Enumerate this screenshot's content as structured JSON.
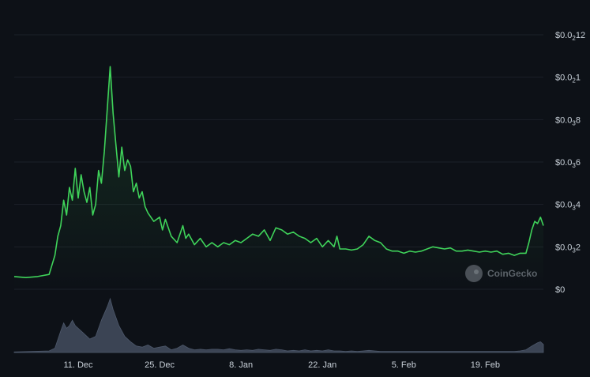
{
  "chart_data": {
    "type": "area",
    "title": "",
    "xlabel": "",
    "ylabel": "",
    "y_ticks": [
      {
        "label": "$0",
        "sub": "",
        "tail": "",
        "value": 0
      },
      {
        "label": "$0.0",
        "sub": "3",
        "tail": "2",
        "value": 2
      },
      {
        "label": "$0.0",
        "sub": "3",
        "tail": "4",
        "value": 4
      },
      {
        "label": "$0.0",
        "sub": "3",
        "tail": "6",
        "value": 6
      },
      {
        "label": "$0.0",
        "sub": "3",
        "tail": "8",
        "value": 8
      },
      {
        "label": "$0.0",
        "sub": "2",
        "tail": "1",
        "value": 10
      },
      {
        "label": "$0.0",
        "sub": "2",
        "tail": "12",
        "value": 12
      }
    ],
    "x_ticks": [
      {
        "label": "11. Dec",
        "day": 11
      },
      {
        "label": "25. Dec",
        "day": 25
      },
      {
        "label": "8. Jan",
        "day": 39
      },
      {
        "label": "22. Jan",
        "day": 53
      },
      {
        "label": "5. Feb",
        "day": 67
      },
      {
        "label": "19. Feb",
        "day": 81
      }
    ],
    "xlim": [
      0,
      91
    ],
    "ylim": [
      0,
      12
    ],
    "grid": true,
    "line_color": "#3fd35a",
    "volume_color": "#3b4454",
    "watermark": "CoinGecko",
    "price": [
      [
        0,
        0.6
      ],
      [
        2,
        0.55
      ],
      [
        4,
        0.6
      ],
      [
        6,
        0.7
      ],
      [
        7,
        1.6
      ],
      [
        7.5,
        2.5
      ],
      [
        8,
        3.0
      ],
      [
        8.5,
        4.2
      ],
      [
        9,
        3.5
      ],
      [
        9.5,
        4.8
      ],
      [
        10,
        4.2
      ],
      [
        10.5,
        5.7
      ],
      [
        11,
        4.3
      ],
      [
        11.5,
        5.4
      ],
      [
        12,
        4.6
      ],
      [
        12.5,
        4.1
      ],
      [
        13,
        4.8
      ],
      [
        13.5,
        3.5
      ],
      [
        14,
        4.0
      ],
      [
        14.5,
        5.6
      ],
      [
        15,
        5.0
      ],
      [
        15.5,
        6.5
      ],
      [
        16,
        8.5
      ],
      [
        16.5,
        10.5
      ],
      [
        17,
        8.3
      ],
      [
        17.5,
        6.8
      ],
      [
        18,
        5.3
      ],
      [
        18.5,
        6.7
      ],
      [
        19,
        5.6
      ],
      [
        19.5,
        6.1
      ],
      [
        20,
        5.8
      ],
      [
        20.5,
        4.6
      ],
      [
        21,
        5.0
      ],
      [
        21.5,
        4.3
      ],
      [
        22,
        4.6
      ],
      [
        22.5,
        3.9
      ],
      [
        23,
        3.6
      ],
      [
        24,
        3.2
      ],
      [
        25,
        3.4
      ],
      [
        25.5,
        2.8
      ],
      [
        26,
        3.3
      ],
      [
        27,
        2.5
      ],
      [
        28,
        2.2
      ],
      [
        29,
        3.0
      ],
      [
        29.5,
        2.4
      ],
      [
        30,
        2.6
      ],
      [
        31,
        2.1
      ],
      [
        32,
        2.4
      ],
      [
        33,
        2.0
      ],
      [
        34,
        2.2
      ],
      [
        35,
        2.0
      ],
      [
        36,
        2.2
      ],
      [
        37,
        2.1
      ],
      [
        38,
        2.3
      ],
      [
        39,
        2.2
      ],
      [
        40,
        2.4
      ],
      [
        41,
        2.6
      ],
      [
        42,
        2.5
      ],
      [
        43,
        2.8
      ],
      [
        44,
        2.3
      ],
      [
        45,
        2.9
      ],
      [
        46,
        2.8
      ],
      [
        47,
        2.6
      ],
      [
        48,
        2.7
      ],
      [
        49,
        2.5
      ],
      [
        50,
        2.4
      ],
      [
        51,
        2.2
      ],
      [
        52,
        2.4
      ],
      [
        53,
        2.0
      ],
      [
        54,
        2.3
      ],
      [
        55,
        2.0
      ],
      [
        55.5,
        2.5
      ],
      [
        56,
        1.9
      ],
      [
        57,
        1.9
      ],
      [
        58,
        1.85
      ],
      [
        59,
        1.9
      ],
      [
        60,
        2.1
      ],
      [
        61,
        2.5
      ],
      [
        62,
        2.3
      ],
      [
        63,
        2.2
      ],
      [
        64,
        1.9
      ],
      [
        65,
        1.8
      ],
      [
        66,
        1.8
      ],
      [
        67,
        1.7
      ],
      [
        68,
        1.8
      ],
      [
        69,
        1.75
      ],
      [
        70,
        1.8
      ],
      [
        71,
        1.9
      ],
      [
        72,
        2.0
      ],
      [
        73,
        1.95
      ],
      [
        74,
        1.9
      ],
      [
        75,
        1.95
      ],
      [
        76,
        1.8
      ],
      [
        77,
        1.8
      ],
      [
        78,
        1.85
      ],
      [
        79,
        1.8
      ],
      [
        80,
        1.75
      ],
      [
        81,
        1.8
      ],
      [
        82,
        1.75
      ],
      [
        83,
        1.8
      ],
      [
        84,
        1.65
      ],
      [
        85,
        1.7
      ],
      [
        86,
        1.6
      ],
      [
        87,
        1.7
      ],
      [
        88,
        1.7
      ],
      [
        88.5,
        2.2
      ],
      [
        89,
        2.8
      ],
      [
        89.5,
        3.2
      ],
      [
        90,
        3.1
      ],
      [
        90.5,
        3.4
      ],
      [
        91,
        3.0
      ]
    ],
    "volume": [
      [
        0,
        0.01
      ],
      [
        6,
        0.03
      ],
      [
        7,
        0.08
      ],
      [
        8,
        0.4
      ],
      [
        8.5,
        0.55
      ],
      [
        9,
        0.45
      ],
      [
        9.5,
        0.5
      ],
      [
        10,
        0.6
      ],
      [
        10.5,
        0.5
      ],
      [
        11,
        0.45
      ],
      [
        12,
        0.35
      ],
      [
        13,
        0.25
      ],
      [
        14,
        0.3
      ],
      [
        15,
        0.6
      ],
      [
        16,
        0.85
      ],
      [
        16.5,
        1.0
      ],
      [
        17,
        0.8
      ],
      [
        18,
        0.5
      ],
      [
        19,
        0.3
      ],
      [
        20,
        0.2
      ],
      [
        21,
        0.12
      ],
      [
        22,
        0.1
      ],
      [
        23,
        0.14
      ],
      [
        24,
        0.08
      ],
      [
        25,
        0.1
      ],
      [
        26,
        0.12
      ],
      [
        27,
        0.05
      ],
      [
        28,
        0.08
      ],
      [
        29,
        0.14
      ],
      [
        30,
        0.08
      ],
      [
        31,
        0.05
      ],
      [
        32,
        0.06
      ],
      [
        33,
        0.05
      ],
      [
        34,
        0.06
      ],
      [
        35,
        0.06
      ],
      [
        36,
        0.05
      ],
      [
        37,
        0.07
      ],
      [
        38,
        0.05
      ],
      [
        39,
        0.04
      ],
      [
        40,
        0.05
      ],
      [
        41,
        0.04
      ],
      [
        42,
        0.06
      ],
      [
        43,
        0.05
      ],
      [
        44,
        0.04
      ],
      [
        45,
        0.06
      ],
      [
        46,
        0.05
      ],
      [
        47,
        0.03
      ],
      [
        48,
        0.04
      ],
      [
        49,
        0.03
      ],
      [
        50,
        0.05
      ],
      [
        51,
        0.03
      ],
      [
        52,
        0.04
      ],
      [
        53,
        0.03
      ],
      [
        54,
        0.05
      ],
      [
        55,
        0.03
      ],
      [
        56,
        0.03
      ],
      [
        57,
        0.02
      ],
      [
        58,
        0.03
      ],
      [
        59,
        0.02
      ],
      [
        60,
        0.03
      ],
      [
        61,
        0.04
      ],
      [
        62,
        0.03
      ],
      [
        63,
        0.02
      ],
      [
        64,
        0.02
      ],
      [
        65,
        0.02
      ],
      [
        66,
        0.02
      ],
      [
        67,
        0.02
      ],
      [
        68,
        0.02
      ],
      [
        69,
        0.02
      ],
      [
        70,
        0.02
      ],
      [
        71,
        0.02
      ],
      [
        72,
        0.02
      ],
      [
        73,
        0.02
      ],
      [
        74,
        0.02
      ],
      [
        75,
        0.02
      ],
      [
        76,
        0.02
      ],
      [
        77,
        0.02
      ],
      [
        78,
        0.02
      ],
      [
        79,
        0.02
      ],
      [
        80,
        0.02
      ],
      [
        81,
        0.02
      ],
      [
        82,
        0.02
      ],
      [
        83,
        0.02
      ],
      [
        84,
        0.02
      ],
      [
        85,
        0.02
      ],
      [
        86,
        0.02
      ],
      [
        87,
        0.03
      ],
      [
        88,
        0.05
      ],
      [
        89,
        0.12
      ],
      [
        90,
        0.18
      ],
      [
        90.5,
        0.2
      ],
      [
        91,
        0.15
      ]
    ]
  }
}
